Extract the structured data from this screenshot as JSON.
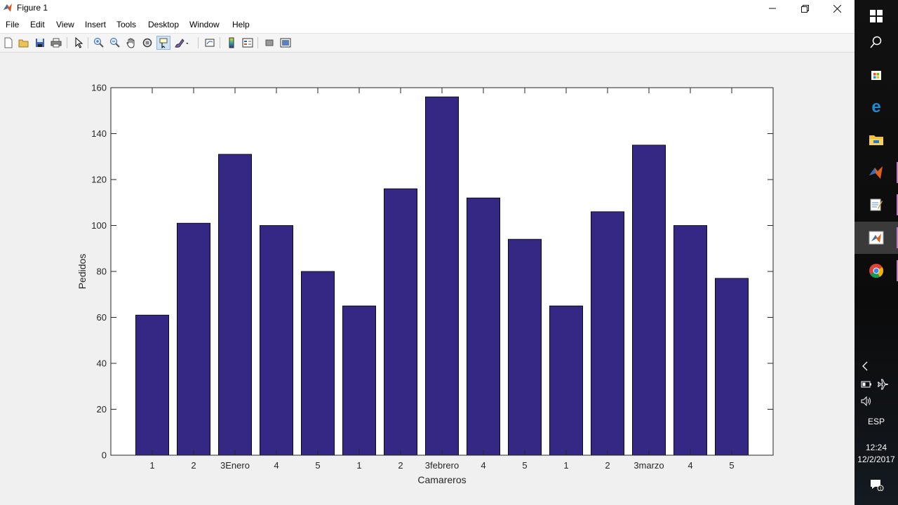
{
  "window": {
    "title": "Figure 1"
  },
  "menu": [
    "File",
    "Edit",
    "View",
    "Insert",
    "Tools",
    "Desktop",
    "Window",
    "Help"
  ],
  "colors": {
    "bar": "#342884",
    "axes_bg": "#ffffff",
    "figure_bg": "#f0f0f0"
  },
  "toolbar": {
    "buttons": [
      "new-figure-icon",
      "open-file-icon",
      "save-icon",
      "print-icon",
      "pointer-icon",
      "zoom-in-icon",
      "zoom-out-icon",
      "pan-hand-icon",
      "rotate-3d-icon",
      "data-cursor-icon",
      "brush-icon",
      "link-plot-icon",
      "colorbar-icon",
      "legend-icon",
      "hide-plot-tools-icon",
      "show-plot-tools-icon"
    ]
  },
  "taskbar": {
    "apps": [
      "windows-start-icon",
      "search-icon",
      "store-icon",
      "edge-icon",
      "file-explorer-icon",
      "matlab-icon",
      "notepad-icon",
      "matlab-figure-icon",
      "chrome-icon"
    ],
    "language": "ESP",
    "time": "12:24",
    "date": "12/2/2017"
  },
  "chart_data": {
    "type": "bar",
    "categories": [
      "1",
      "2",
      "3Enero",
      "4",
      "5",
      "1",
      "2",
      "3febrero",
      "4",
      "5",
      "1",
      "2",
      "3marzo",
      "4",
      "5"
    ],
    "values": [
      61,
      101,
      131,
      100,
      80,
      65,
      116,
      156,
      112,
      94,
      65,
      106,
      135,
      100,
      77
    ],
    "title": "",
    "xlabel": "Camareros",
    "ylabel": "Pedidos",
    "ylim": [
      0,
      160
    ],
    "yticks": [
      0,
      20,
      40,
      60,
      80,
      100,
      120,
      140,
      160
    ],
    "grid": false,
    "legend": "none"
  }
}
